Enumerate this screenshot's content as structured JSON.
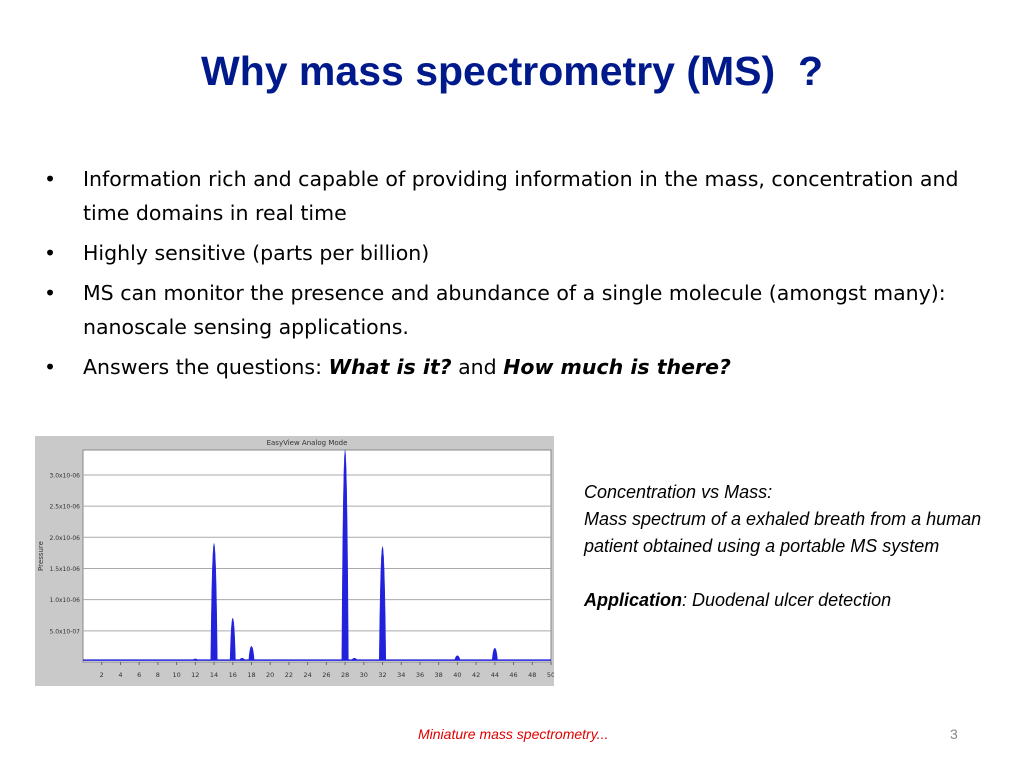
{
  "slide": {
    "title": "Why mass spectrometry (MS)  ?",
    "bullets": [
      {
        "text": "Information rich and capable of providing information in the mass, concentration and time domains in real time"
      },
      {
        "text": "Highly sensitive (parts per billion)"
      },
      {
        "text": "MS can monitor the presence and abundance of a single molecule (amongst many):  nanoscale sensing applications."
      },
      {
        "prefix": "Answers the questions: ",
        "q1": "What is it?",
        "mid": " and ",
        "q2": "How much is there?"
      }
    ],
    "bullet_glyph": "•",
    "caption": {
      "line1": "Concentration vs Mass:",
      "line2": "Mass spectrum of a exhaled breath from a human patient obtained using a portable MS system",
      "app_label": "Application",
      "app_text": ": Duodenal ulcer detection"
    },
    "footer": "Miniature mass spectrometry...",
    "page_number": "3"
  },
  "chart_data": {
    "type": "line",
    "title": "EasyView Analog Mode",
    "ylabel": "Pressure",
    "xlabel": "",
    "x_ticks": [
      "2",
      "4",
      "6",
      "8",
      "10",
      "12",
      "14",
      "16",
      "18",
      "20",
      "22",
      "24",
      "26",
      "28",
      "30",
      "32",
      "34",
      "36",
      "38",
      "40",
      "42",
      "44",
      "46",
      "48",
      "50"
    ],
    "y_ticks": [
      "5.0x10-07",
      "1.0x10-06",
      "1.5x10-06",
      "2.0x10-06",
      "2.5x10-06",
      "3.0x10-06"
    ],
    "xlim": [
      0,
      50
    ],
    "ylim": [
      0,
      3.4e-06
    ],
    "grid": true,
    "series_color": "#2222dd",
    "peaks": [
      {
        "x": 12,
        "y": 5e-08
      },
      {
        "x": 14,
        "y": 1.9e-06
      },
      {
        "x": 16,
        "y": 7e-07
      },
      {
        "x": 17,
        "y": 6e-08
      },
      {
        "x": 18,
        "y": 2.5e-07
      },
      {
        "x": 28,
        "y": 3.4e-06
      },
      {
        "x": 29,
        "y": 6e-08
      },
      {
        "x": 32,
        "y": 1.85e-06
      },
      {
        "x": 40,
        "y": 1e-07
      },
      {
        "x": 44,
        "y": 2.2e-07
      }
    ]
  }
}
